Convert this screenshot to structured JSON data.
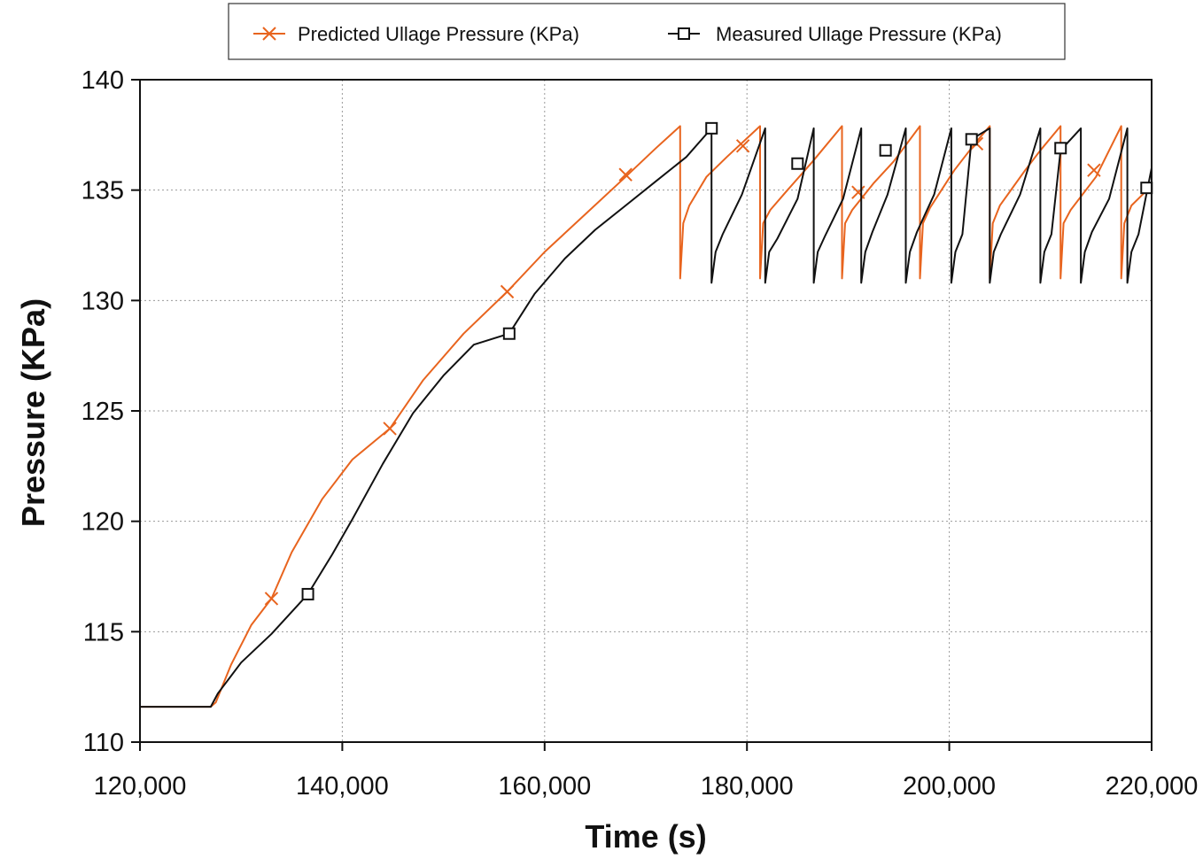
{
  "chart_data": {
    "type": "line",
    "title": "",
    "xlabel": "Time (s)",
    "ylabel": "Pressure (KPa)",
    "xlim": [
      120000,
      220000
    ],
    "ylim": [
      110,
      140
    ],
    "x_ticks": [
      120000,
      140000,
      160000,
      180000,
      200000,
      220000
    ],
    "x_tick_labels": [
      "120,000",
      "140,000",
      "160,000",
      "180,000",
      "200,000",
      "220,000"
    ],
    "y_ticks": [
      110,
      115,
      120,
      125,
      130,
      135,
      140
    ],
    "y_tick_labels": [
      "110",
      "115",
      "120",
      "125",
      "130",
      "135",
      "140"
    ],
    "grid": true,
    "legend_position": "top",
    "series": [
      {
        "name": "Predicted Ullage Pressure (KPa)",
        "color": "#e8641e",
        "marker": "x",
        "x": [
          120000,
          127000,
          127500,
          129000,
          131000,
          133000,
          135000,
          138000,
          141000,
          144700,
          148000,
          152000,
          156300,
          160000,
          164000,
          168000,
          171000,
          173400,
          173400,
          173700,
          174300,
          176000,
          178000,
          181300,
          181300,
          181600,
          182300,
          184000,
          186500,
          189400,
          189400,
          189700,
          190400,
          192500,
          194500,
          197100,
          197100,
          197400,
          198100,
          200500,
          202700,
          204000,
          204000,
          204300,
          205000,
          207500,
          209000,
          211000,
          211000,
          211300,
          212000,
          214500,
          217000,
          217000,
          217300,
          218000,
          220000
        ],
        "y": [
          111.6,
          111.6,
          111.8,
          113.5,
          115.3,
          116.5,
          118.6,
          121.0,
          122.8,
          124.2,
          126.4,
          128.5,
          130.4,
          132.2,
          133.9,
          135.6,
          136.9,
          137.9,
          131.0,
          133.5,
          134.3,
          135.6,
          136.5,
          137.9,
          131.0,
          133.5,
          134.1,
          135.0,
          136.3,
          137.9,
          131.0,
          133.5,
          134.1,
          135.3,
          136.3,
          137.9,
          131.0,
          133.5,
          134.2,
          135.9,
          137.2,
          137.9,
          131.0,
          133.5,
          134.3,
          135.9,
          136.8,
          137.9,
          131.0,
          133.5,
          134.1,
          135.6,
          137.9,
          131.0,
          133.5,
          134.3,
          135.2
        ],
        "marker_x": [
          133000,
          144700,
          156300,
          168000,
          179600,
          191000,
          202700,
          214300
        ],
        "marker_y": [
          116.5,
          124.2,
          130.4,
          135.7,
          137.0,
          134.9,
          137.1,
          135.9
        ]
      },
      {
        "name": "Measured Ullage Pressure (KPa)",
        "color": "#111111",
        "marker": "square",
        "x": [
          120000,
          127000,
          127700,
          130000,
          133000,
          136600,
          139000,
          141000,
          144000,
          147000,
          150000,
          153000,
          156500,
          159000,
          162000,
          165000,
          168000,
          171000,
          174000,
          176500,
          176500,
          176900,
          177600,
          179500,
          181800,
          181800,
          182200,
          183000,
          185000,
          186600,
          186600,
          187000,
          187700,
          189500,
          191300,
          191300,
          191700,
          192400,
          193900,
          195700,
          195700,
          196100,
          196800,
          198500,
          200200,
          200200,
          200600,
          201300,
          202200,
          204000,
          204000,
          204400,
          205100,
          207000,
          209000,
          209000,
          209400,
          210100,
          211000,
          213000,
          213000,
          213400,
          214100,
          215800,
          217600,
          217600,
          218000,
          218700,
          220000
        ],
        "y": [
          111.6,
          111.6,
          112.2,
          113.6,
          114.9,
          116.7,
          118.5,
          120.1,
          122.6,
          124.9,
          126.6,
          128.0,
          128.5,
          130.3,
          131.9,
          133.2,
          134.3,
          135.4,
          136.5,
          137.8,
          130.8,
          132.2,
          133.0,
          134.8,
          137.8,
          130.8,
          132.2,
          132.8,
          134.6,
          137.8,
          130.8,
          132.2,
          132.9,
          134.6,
          137.8,
          130.8,
          132.2,
          133.1,
          134.8,
          137.8,
          130.8,
          132.2,
          133.1,
          134.8,
          137.8,
          130.8,
          132.2,
          133.0,
          137.3,
          137.8,
          130.8,
          132.2,
          133.0,
          134.8,
          137.8,
          130.8,
          132.2,
          133.0,
          136.8,
          137.8,
          130.8,
          132.2,
          133.1,
          134.6,
          137.8,
          130.8,
          132.2,
          133.0,
          136.0
        ],
        "marker_x": [
          136600,
          156500,
          176500,
          185000,
          193700,
          202200,
          211000,
          219500
        ],
        "marker_y": [
          116.7,
          128.5,
          137.8,
          136.2,
          136.8,
          137.3,
          136.9,
          135.1
        ]
      }
    ]
  }
}
